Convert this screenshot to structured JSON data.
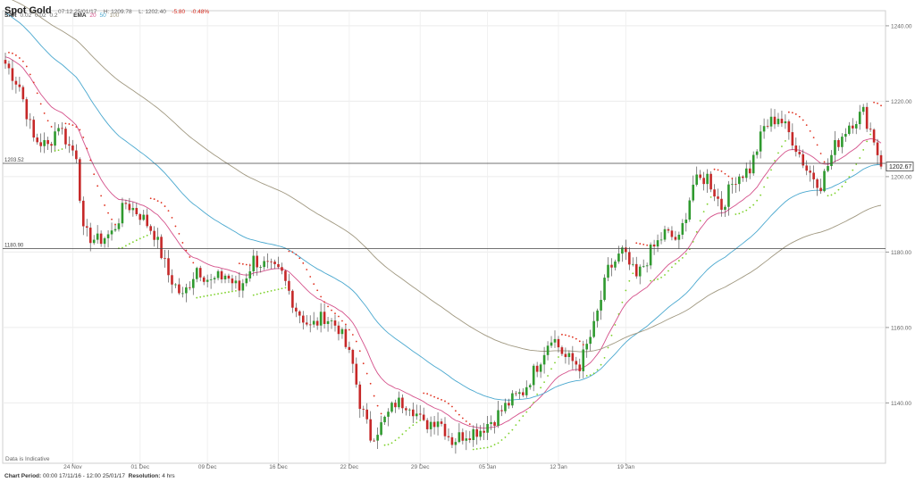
{
  "header": {
    "title": "Spot Gold",
    "datetime": "07:12 25/01/17",
    "high": "H: 1209.78",
    "low": "L: 1202.40",
    "change": "-5.80",
    "change_pct": "-0.48%"
  },
  "indicators": {
    "sar_label": "SAR",
    "sar_params": [
      "0.02",
      "0.02",
      "0.2"
    ],
    "ema_label": "EMA",
    "ema_params": [
      "20",
      "50",
      "100"
    ]
  },
  "footer": {
    "period_label": "Chart Period:",
    "period_value": "00:00 17/11/16 - 12:00 25/01/17",
    "resolution_label": "Resolution:",
    "resolution_value": "4 hrs"
  },
  "note": "Data is Indicative",
  "colors": {
    "up": "#2f9a2f",
    "down": "#c62828",
    "ema20": "#d4508a",
    "ema50": "#4aa8cf",
    "ema100": "#a09880",
    "sar_up": "#7dd12a",
    "sar_down": "#e0301e"
  },
  "chart_data": {
    "type": "candlestick",
    "instrument": "Spot Gold",
    "ylim": [
      1124,
      1244
    ],
    "y_ticks": [
      "1240.00",
      "1220.00",
      "1200.00",
      "1180.00",
      "1160.00",
      "1140.00"
    ],
    "x_ticks": [
      "24 Nov",
      "01 Dec",
      "09 Dec",
      "16 Dec",
      "22 Dec",
      "29 Dec",
      "05 Jan",
      "12 Jan",
      "19 Jan"
    ],
    "current_price": "1202.67",
    "horizontal_lines": [
      {
        "label": "1203.52",
        "value": 1203.52
      },
      {
        "label": "1180.90",
        "value": 1180.9
      }
    ],
    "anchors": [
      {
        "i": 0,
        "v": 1230
      },
      {
        "i": 4,
        "v": 1224
      },
      {
        "i": 8,
        "v": 1210
      },
      {
        "i": 12,
        "v": 1208
      },
      {
        "i": 15,
        "v": 1214
      },
      {
        "i": 18,
        "v": 1208
      },
      {
        "i": 20,
        "v": 1206
      },
      {
        "i": 22,
        "v": 1185
      },
      {
        "i": 26,
        "v": 1183
      },
      {
        "i": 30,
        "v": 1185
      },
      {
        "i": 34,
        "v": 1193
      },
      {
        "i": 38,
        "v": 1190
      },
      {
        "i": 42,
        "v": 1185
      },
      {
        "i": 46,
        "v": 1174
      },
      {
        "i": 50,
        "v": 1168
      },
      {
        "i": 54,
        "v": 1176
      },
      {
        "i": 58,
        "v": 1172
      },
      {
        "i": 62,
        "v": 1174
      },
      {
        "i": 66,
        "v": 1170
      },
      {
        "i": 70,
        "v": 1178
      },
      {
        "i": 74,
        "v": 1176
      },
      {
        "i": 78,
        "v": 1174
      },
      {
        "i": 82,
        "v": 1165
      },
      {
        "i": 86,
        "v": 1160
      },
      {
        "i": 90,
        "v": 1163
      },
      {
        "i": 94,
        "v": 1160
      },
      {
        "i": 98,
        "v": 1150
      },
      {
        "i": 100,
        "v": 1140
      },
      {
        "i": 103,
        "v": 1131
      },
      {
        "i": 106,
        "v": 1134
      },
      {
        "i": 110,
        "v": 1140
      },
      {
        "i": 114,
        "v": 1140
      },
      {
        "i": 118,
        "v": 1134
      },
      {
        "i": 122,
        "v": 1136
      },
      {
        "i": 126,
        "v": 1130
      },
      {
        "i": 130,
        "v": 1132
      },
      {
        "i": 134,
        "v": 1133
      },
      {
        "i": 138,
        "v": 1136
      },
      {
        "i": 142,
        "v": 1140
      },
      {
        "i": 146,
        "v": 1143
      },
      {
        "i": 150,
        "v": 1150
      },
      {
        "i": 154,
        "v": 1158
      },
      {
        "i": 158,
        "v": 1152
      },
      {
        "i": 162,
        "v": 1150
      },
      {
        "i": 166,
        "v": 1160
      },
      {
        "i": 170,
        "v": 1175
      },
      {
        "i": 174,
        "v": 1180
      },
      {
        "i": 178,
        "v": 1173
      },
      {
        "i": 182,
        "v": 1180
      },
      {
        "i": 186,
        "v": 1185
      },
      {
        "i": 190,
        "v": 1183
      },
      {
        "i": 194,
        "v": 1198
      },
      {
        "i": 198,
        "v": 1200
      },
      {
        "i": 202,
        "v": 1192
      },
      {
        "i": 206,
        "v": 1200
      },
      {
        "i": 210,
        "v": 1202
      },
      {
        "i": 214,
        "v": 1213
      },
      {
        "i": 218,
        "v": 1216
      },
      {
        "i": 222,
        "v": 1210
      },
      {
        "i": 226,
        "v": 1202
      },
      {
        "i": 230,
        "v": 1198
      },
      {
        "i": 234,
        "v": 1208
      },
      {
        "i": 238,
        "v": 1214
      },
      {
        "i": 242,
        "v": 1217
      },
      {
        "i": 245,
        "v": 1210
      },
      {
        "i": 247,
        "v": 1202.67
      }
    ],
    "ema_series": [
      {
        "period": 20,
        "color": "#d4508a"
      },
      {
        "period": 50,
        "color": "#4aa8cf"
      },
      {
        "period": 100,
        "color": "#a09880"
      }
    ]
  }
}
